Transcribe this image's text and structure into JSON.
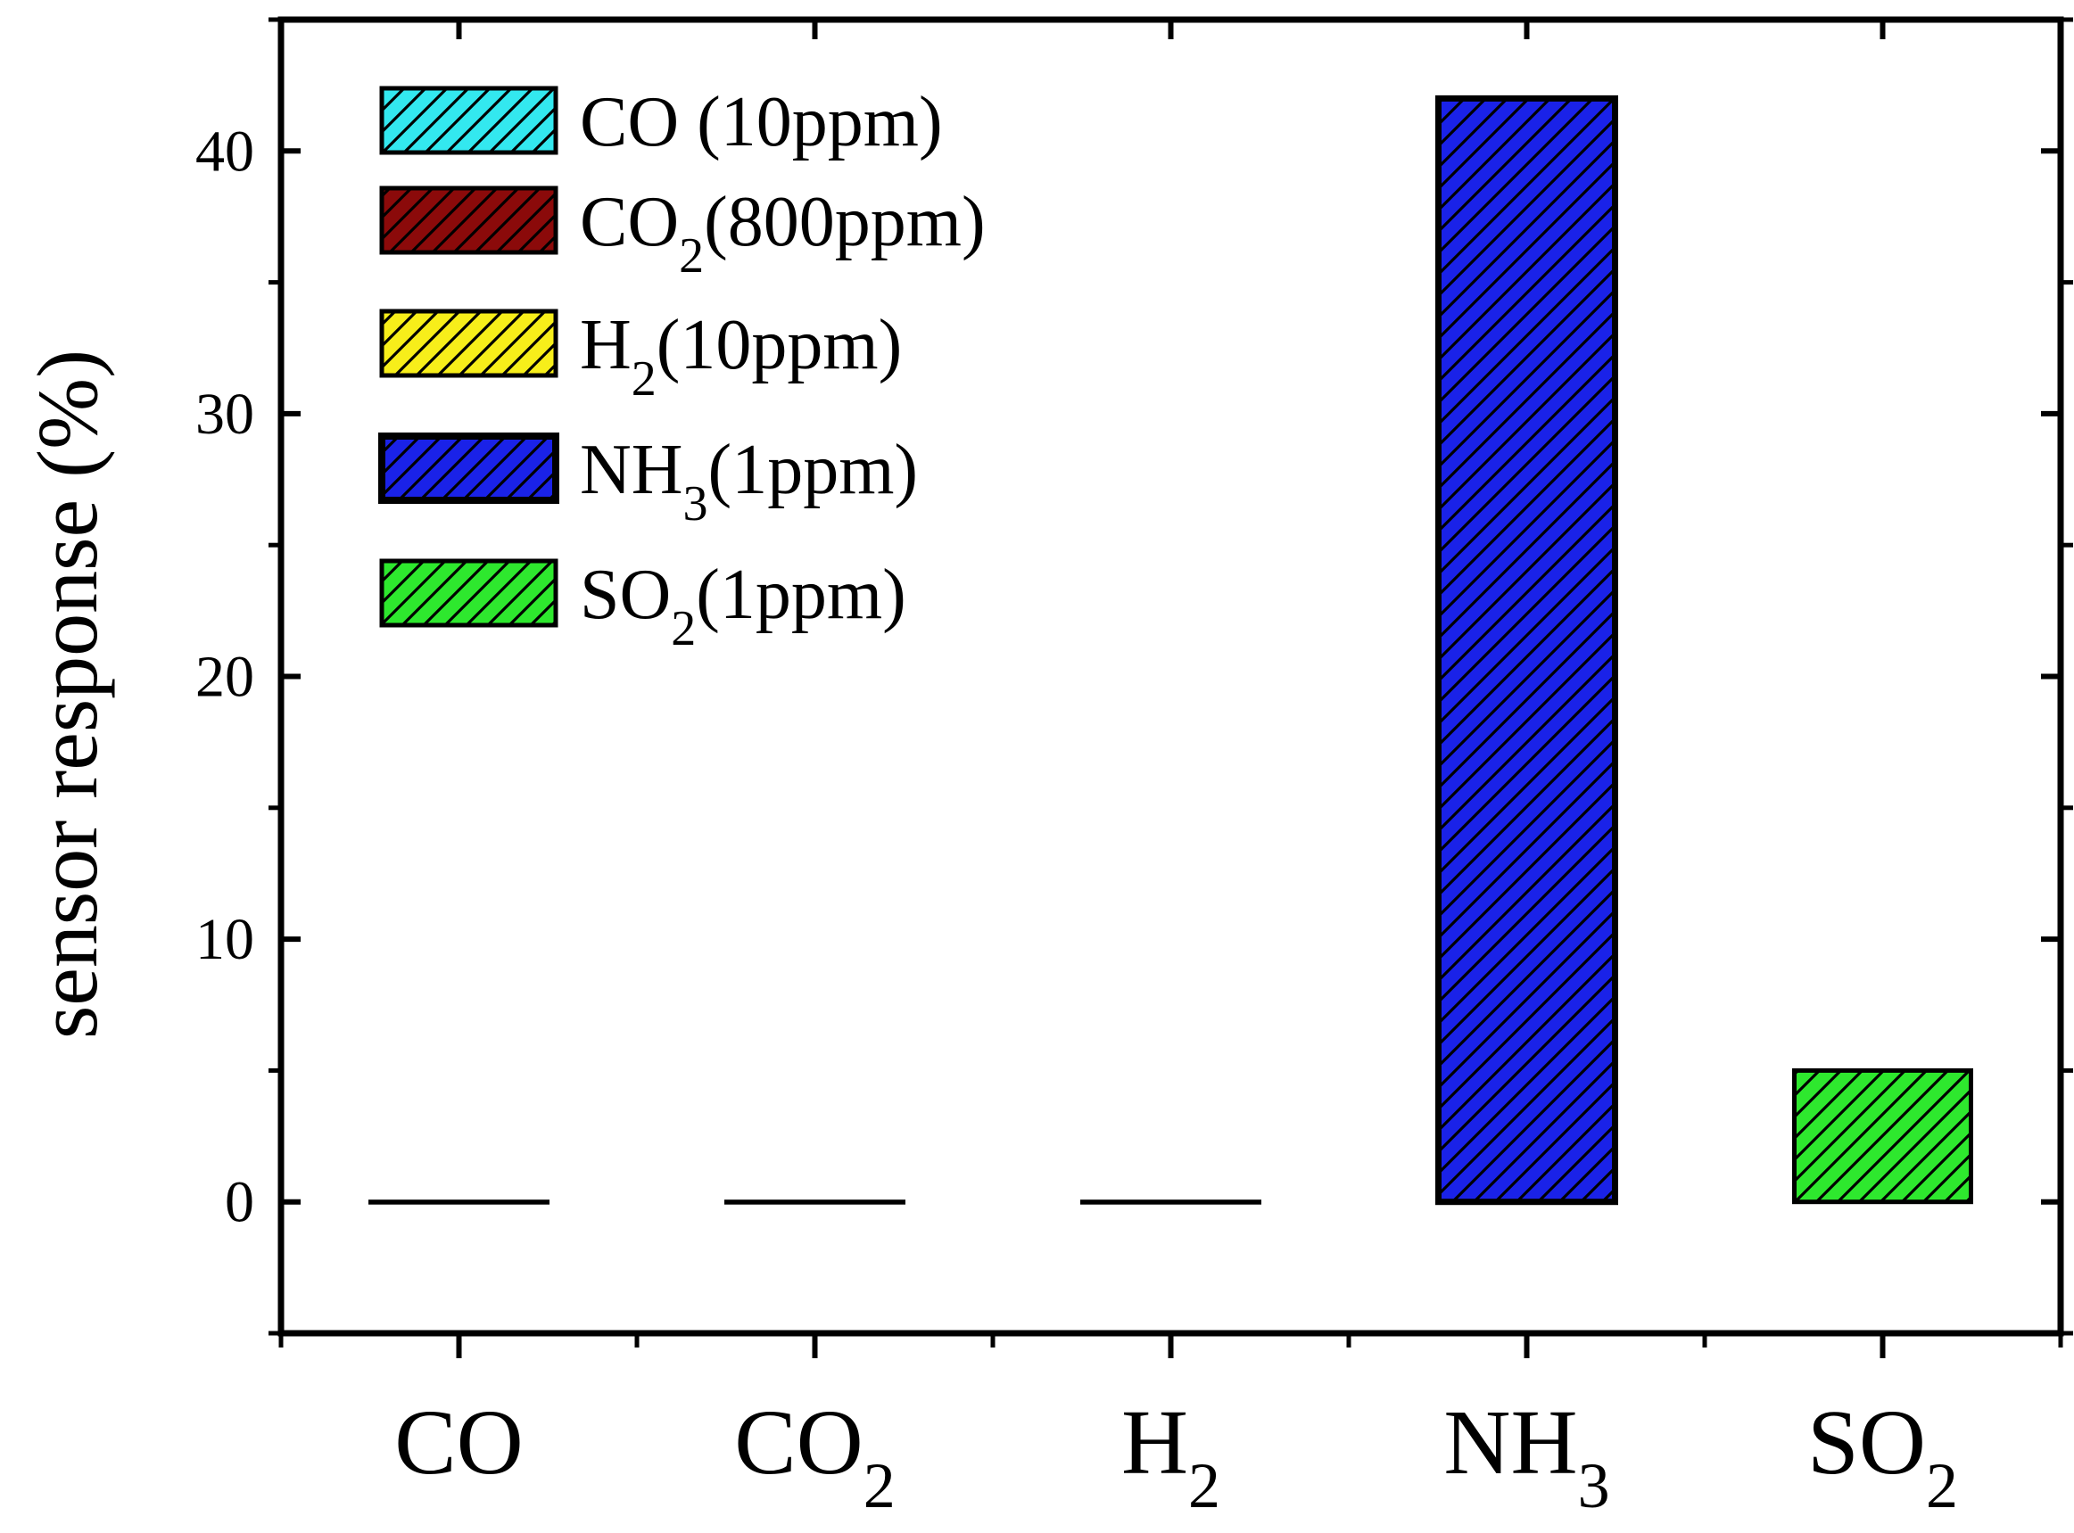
{
  "chart_data": {
    "type": "bar",
    "ylabel": "sensor response (%)",
    "xlabel": "",
    "ylim": [
      -5,
      45
    ],
    "yticks": [
      0,
      10,
      20,
      30,
      40
    ],
    "categories": [
      {
        "base": "CO",
        "sub": ""
      },
      {
        "base": "CO",
        "sub": "2"
      },
      {
        "base": "H",
        "sub": "2"
      },
      {
        "base": "NH",
        "sub": "3"
      },
      {
        "base": "SO",
        "sub": "2"
      }
    ],
    "values": [
      0,
      0,
      0,
      42,
      5
    ],
    "colors": [
      "#33e8ef",
      "#8b0a0a",
      "#f7ee1a",
      "#1a22e8",
      "#2ee82e"
    ],
    "pattern": "diagonal-hatch",
    "legend": {
      "position": "top-left",
      "entries": [
        {
          "base": "CO",
          "sub": "",
          "rest": " (10ppm)"
        },
        {
          "base": "CO",
          "sub": "2",
          "rest": "(800ppm)"
        },
        {
          "base": "H",
          "sub": "2",
          "rest": "(10ppm)"
        },
        {
          "base": "NH",
          "sub": "3",
          "rest": "(1ppm)"
        },
        {
          "base": "SO",
          "sub": "2",
          "rest": "(1ppm)"
        }
      ]
    }
  }
}
